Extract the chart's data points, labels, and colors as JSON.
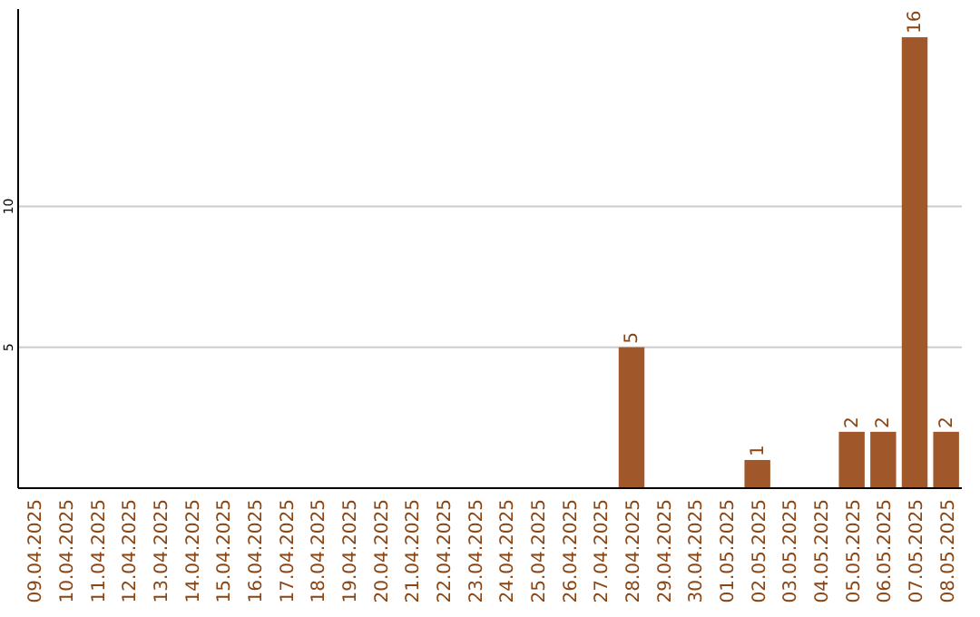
{
  "chart_data": {
    "type": "bar",
    "categories": [
      "09.04.2025",
      "10.04.2025",
      "11.04.2025",
      "12.04.2025",
      "13.04.2025",
      "14.04.2025",
      "15.04.2025",
      "16.04.2025",
      "17.04.2025",
      "18.04.2025",
      "19.04.2025",
      "20.04.2025",
      "21.04.2025",
      "22.04.2025",
      "23.04.2025",
      "24.04.2025",
      "25.04.2025",
      "26.04.2025",
      "27.04.2025",
      "28.04.2025",
      "29.04.2025",
      "30.04.2025",
      "01.05.2025",
      "02.05.2025",
      "03.05.2025",
      "04.05.2025",
      "05.05.2025",
      "06.05.2025",
      "07.05.2025",
      "08.05.2025"
    ],
    "values": [
      0,
      0,
      0,
      0,
      0,
      0,
      0,
      0,
      0,
      0,
      0,
      0,
      0,
      0,
      0,
      0,
      0,
      0,
      0,
      5,
      0,
      0,
      0,
      1,
      0,
      0,
      2,
      2,
      16,
      2
    ],
    "value_labels": [
      null,
      null,
      null,
      null,
      null,
      null,
      null,
      null,
      null,
      null,
      null,
      null,
      null,
      null,
      null,
      null,
      null,
      null,
      null,
      "5",
      null,
      null,
      null,
      "1",
      null,
      null,
      "2",
      "2",
      "16",
      "2"
    ],
    "color": "#a0582a",
    "ylim": [
      0,
      17
    ],
    "yticks": [
      5,
      10
    ],
    "grid": "y"
  }
}
